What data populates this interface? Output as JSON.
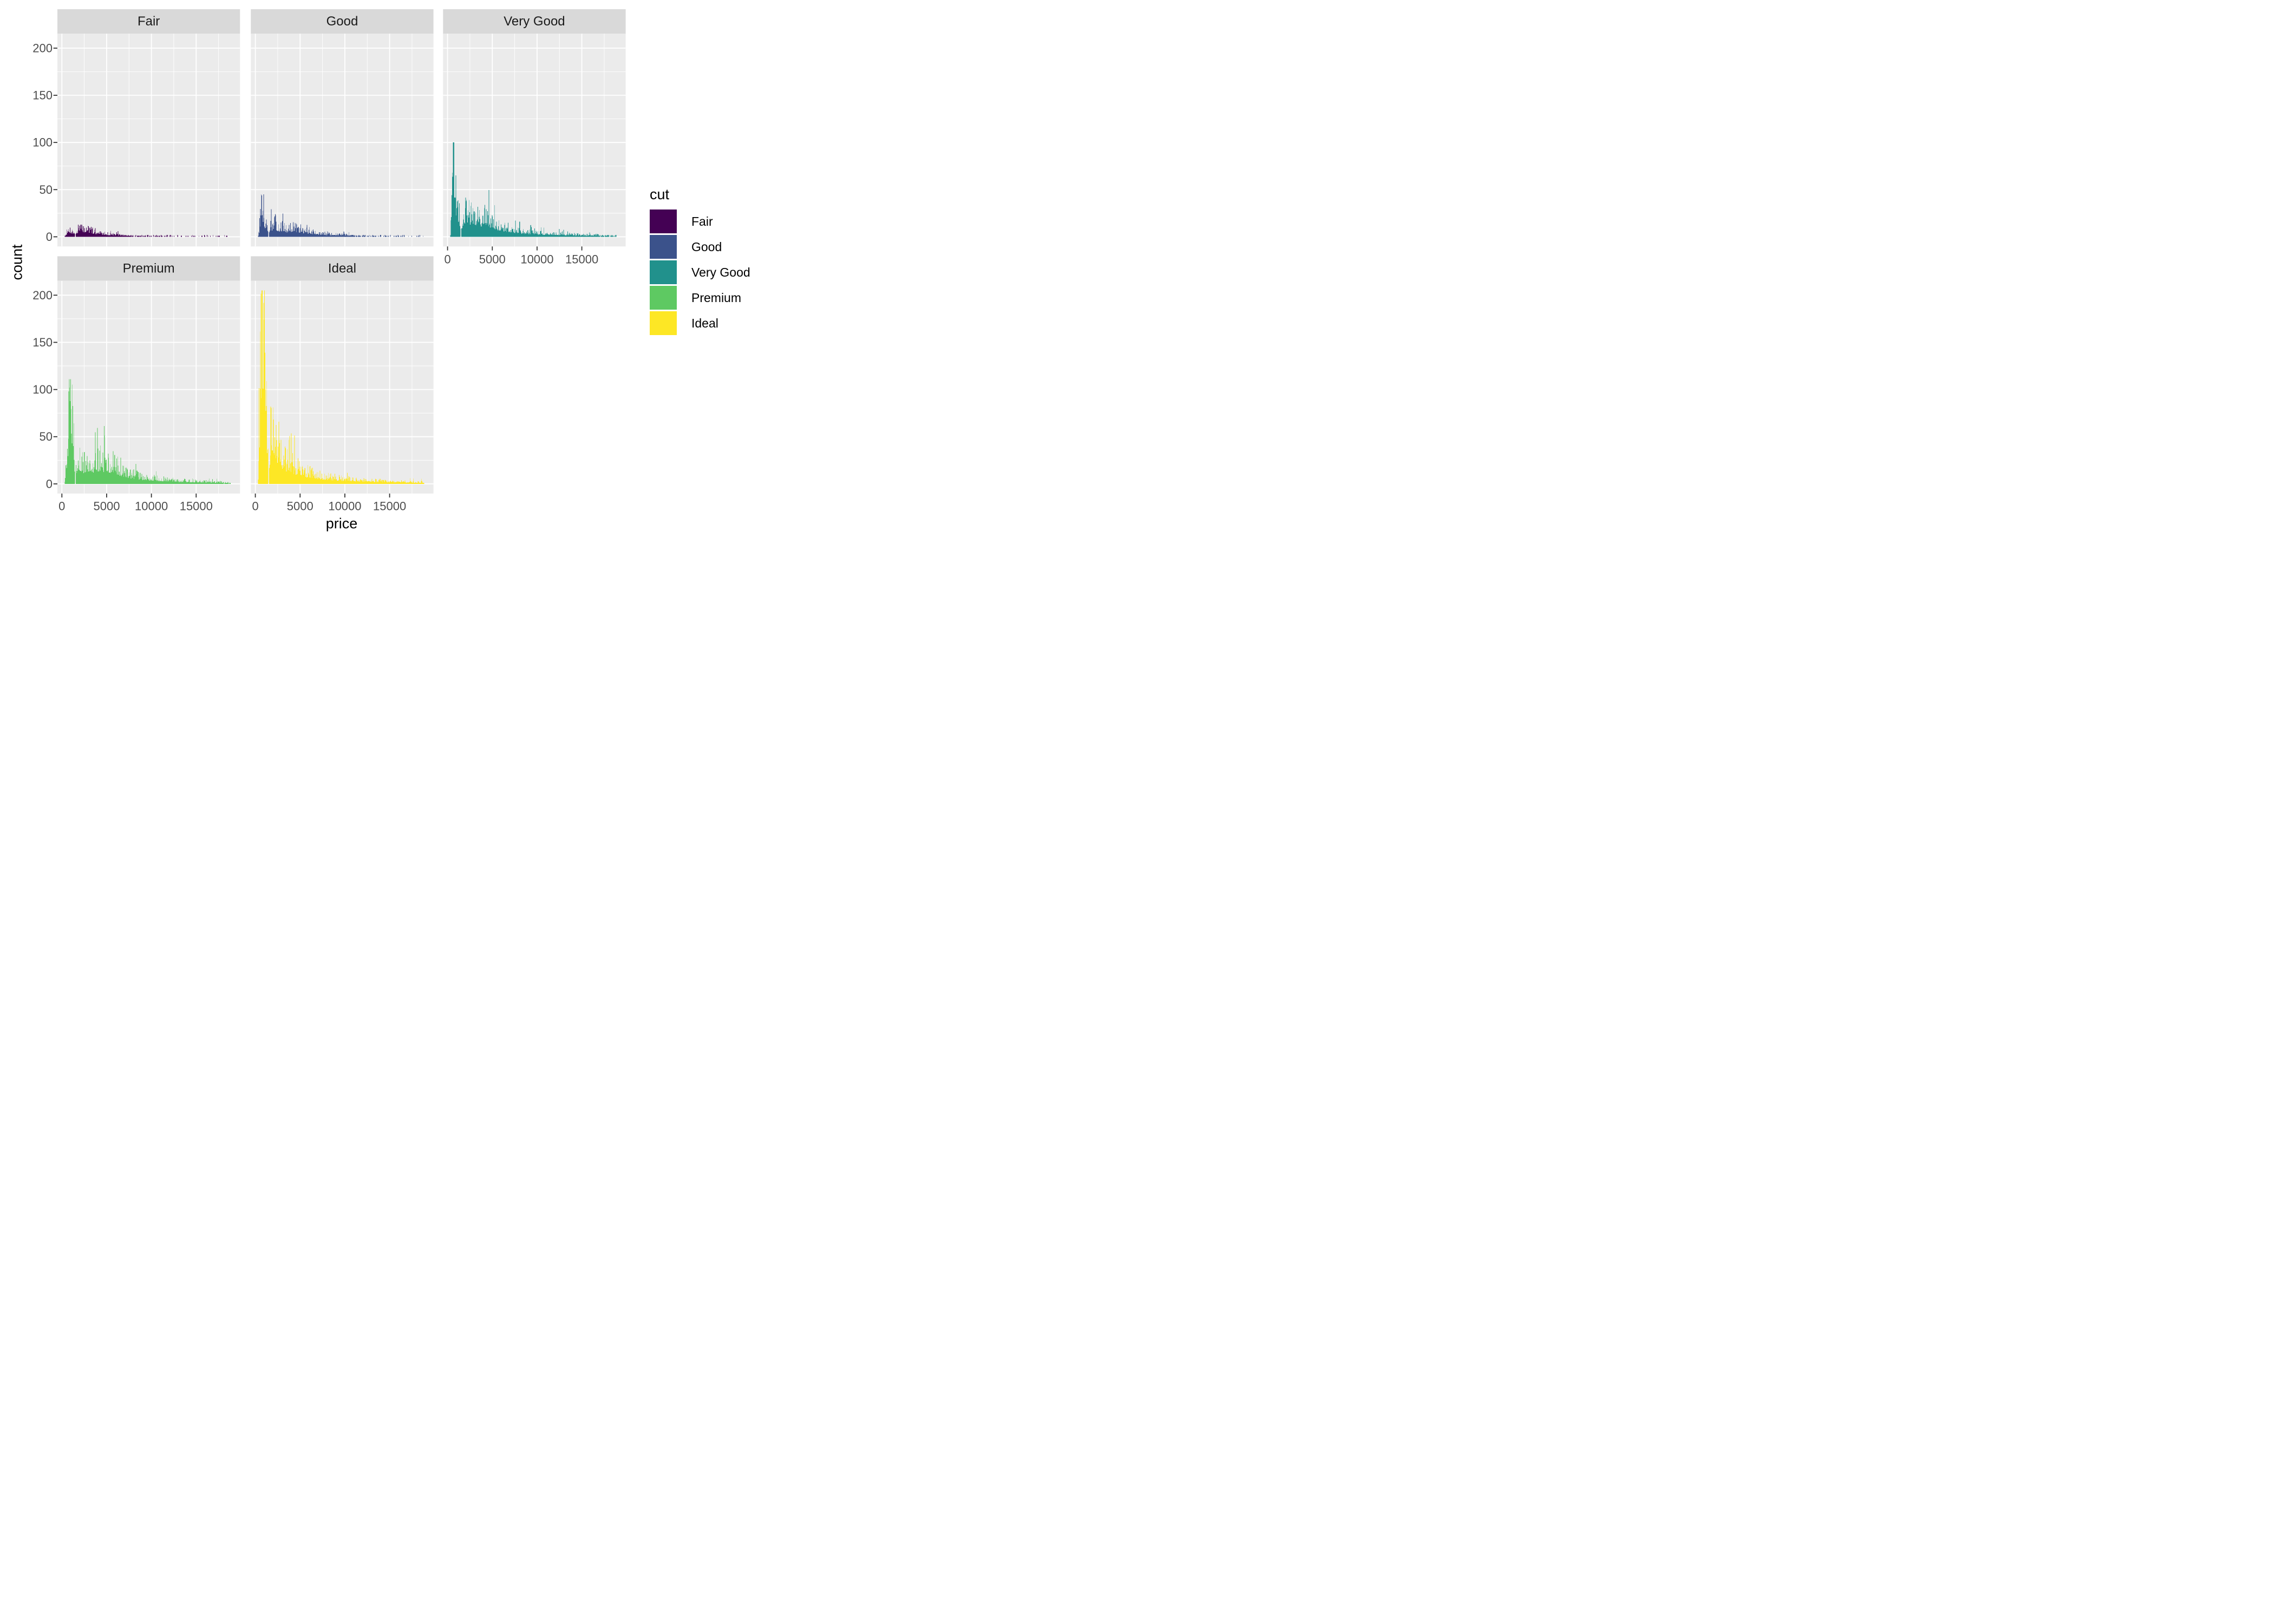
{
  "axis": {
    "x_title": "price",
    "y_title": "count",
    "tick_label_color": "#4d4d4d",
    "tick_mark_color": "#333333"
  },
  "theme": {
    "panel_bg": "#ebebeb",
    "strip_bg": "#d9d9d9",
    "strip_text_color": "#1a1a1a",
    "grid_color": "#ffffff",
    "background": "#ffffff"
  },
  "legend": {
    "title": "cut",
    "entries": [
      {
        "label": "Fair",
        "color": "#440154"
      },
      {
        "label": "Good",
        "color": "#3B528B"
      },
      {
        "label": "Very Good",
        "color": "#21918C"
      },
      {
        "label": "Premium",
        "color": "#5EC962"
      },
      {
        "label": "Ideal",
        "color": "#FDE725"
      }
    ]
  },
  "chart_data": {
    "type": "bar",
    "subtype": "faceted-histogram",
    "x_variable": "price",
    "y_variable": "count",
    "facet_variable": "cut",
    "bin_width": 50,
    "x_start": 300,
    "x_end": 18850,
    "xlim": [
      0,
      18823
    ],
    "ylim": [
      0,
      205
    ],
    "x_ticks": [
      0,
      5000,
      10000,
      15000
    ],
    "x_minor_ticks": [
      2500,
      7500,
      12500,
      17500
    ],
    "y_ticks": [
      0,
      50,
      100,
      150,
      200
    ],
    "y_minor_ticks": [
      25,
      75,
      125,
      175
    ],
    "grid": true,
    "legend_position": "right",
    "facets": [
      {
        "name": "Fair",
        "color": "#440154",
        "row": 0,
        "col": 0,
        "show_y_axis": true,
        "show_x_axis": false,
        "max_count": 13,
        "seed": 7,
        "envelope": [
          [
            326,
            1
          ],
          [
            500,
            4
          ],
          [
            700,
            7
          ],
          [
            900,
            8
          ],
          [
            1100,
            7
          ],
          [
            1300,
            6
          ],
          [
            1440,
            5
          ],
          [
            1460,
            0
          ],
          [
            1540,
            0
          ],
          [
            1560,
            5
          ],
          [
            1700,
            7
          ],
          [
            2000,
            9
          ],
          [
            2200,
            13
          ],
          [
            2500,
            8
          ],
          [
            2900,
            11
          ],
          [
            3200,
            7
          ],
          [
            3600,
            6
          ],
          [
            4000,
            5
          ],
          [
            4500,
            4
          ],
          [
            5000,
            3.5
          ],
          [
            5500,
            3
          ],
          [
            6000,
            2.5
          ],
          [
            7000,
            2
          ],
          [
            8000,
            1.6
          ],
          [
            9000,
            1.3
          ],
          [
            10000,
            1.1
          ],
          [
            12000,
            0.8
          ],
          [
            14000,
            0.6
          ],
          [
            16000,
            0.5
          ],
          [
            18000,
            0.4
          ],
          [
            18823,
            0.4
          ]
        ]
      },
      {
        "name": "Good",
        "color": "#3B528B",
        "row": 0,
        "col": 1,
        "show_y_axis": false,
        "show_x_axis": false,
        "max_count": 45,
        "seed": 13,
        "envelope": [
          [
            326,
            2
          ],
          [
            450,
            10
          ],
          [
            550,
            25
          ],
          [
            650,
            42
          ],
          [
            700,
            45
          ],
          [
            800,
            38
          ],
          [
            900,
            28
          ],
          [
            1000,
            22
          ],
          [
            1100,
            17
          ],
          [
            1250,
            14
          ],
          [
            1400,
            12
          ],
          [
            1440,
            9
          ],
          [
            1460,
            0
          ],
          [
            1540,
            0
          ],
          [
            1560,
            9
          ],
          [
            1650,
            11
          ],
          [
            1800,
            12
          ],
          [
            2000,
            14
          ],
          [
            2200,
            16
          ],
          [
            2400,
            13
          ],
          [
            2600,
            11
          ],
          [
            2800,
            10
          ],
          [
            3000,
            12
          ],
          [
            3300,
            10
          ],
          [
            3600,
            9
          ],
          [
            4000,
            10
          ],
          [
            4300,
            12
          ],
          [
            4600,
            9
          ],
          [
            5000,
            8
          ],
          [
            5500,
            6.5
          ],
          [
            6000,
            7
          ],
          [
            6500,
            5.5
          ],
          [
            7000,
            4.5
          ],
          [
            7500,
            4
          ],
          [
            8000,
            3.2
          ],
          [
            9000,
            2.6
          ],
          [
            10000,
            2.2
          ],
          [
            11000,
            1.9
          ],
          [
            12000,
            1.6
          ],
          [
            13000,
            1.3
          ],
          [
            14000,
            1.1
          ],
          [
            15000,
            0.9
          ],
          [
            16000,
            0.7
          ],
          [
            17000,
            0.6
          ],
          [
            18000,
            0.5
          ],
          [
            18823,
            0.5
          ]
        ]
      },
      {
        "name": "Very Good",
        "color": "#21918C",
        "row": 0,
        "col": 2,
        "show_y_axis": false,
        "show_x_axis": true,
        "max_count": 100,
        "seed": 101,
        "envelope": [
          [
            326,
            3
          ],
          [
            450,
            25
          ],
          [
            550,
            60
          ],
          [
            650,
            100
          ],
          [
            750,
            82
          ],
          [
            850,
            58
          ],
          [
            950,
            46
          ],
          [
            1100,
            36
          ],
          [
            1250,
            28
          ],
          [
            1400,
            22
          ],
          [
            1440,
            14
          ],
          [
            1460,
            0
          ],
          [
            1540,
            0
          ],
          [
            1560,
            14
          ],
          [
            1650,
            20
          ],
          [
            1800,
            25
          ],
          [
            2000,
            28
          ],
          [
            2200,
            30
          ],
          [
            2500,
            26
          ],
          [
            2700,
            24
          ],
          [
            2900,
            28
          ],
          [
            3100,
            24
          ],
          [
            3400,
            22
          ],
          [
            3700,
            20
          ],
          [
            4000,
            22
          ],
          [
            4300,
            25
          ],
          [
            4600,
            20
          ],
          [
            5000,
            18
          ],
          [
            5400,
            15
          ],
          [
            5800,
            13
          ],
          [
            6200,
            12
          ],
          [
            6600,
            10
          ],
          [
            7000,
            9
          ],
          [
            7500,
            8
          ],
          [
            8000,
            7
          ],
          [
            8500,
            6
          ],
          [
            9000,
            5.5
          ],
          [
            9500,
            5
          ],
          [
            10000,
            4.5
          ],
          [
            11000,
            4
          ],
          [
            12000,
            3.5
          ],
          [
            13000,
            3
          ],
          [
            14000,
            2.6
          ],
          [
            15000,
            2.3
          ],
          [
            16000,
            2.1
          ],
          [
            17000,
            2
          ],
          [
            18000,
            1.8
          ],
          [
            18823,
            1.6
          ]
        ]
      },
      {
        "name": "Premium",
        "color": "#5EC962",
        "row": 1,
        "col": 0,
        "show_y_axis": true,
        "show_x_axis": true,
        "max_count": 111,
        "seed": 5,
        "envelope": [
          [
            326,
            4
          ],
          [
            500,
            30
          ],
          [
            700,
            60
          ],
          [
            850,
            90
          ],
          [
            1000,
            110
          ],
          [
            1100,
            85
          ],
          [
            1200,
            65
          ],
          [
            1350,
            45
          ],
          [
            1440,
            22
          ],
          [
            1460,
            0
          ],
          [
            1540,
            0
          ],
          [
            1560,
            16
          ],
          [
            1650,
            25
          ],
          [
            1800,
            30
          ],
          [
            2000,
            28
          ],
          [
            2200,
            25
          ],
          [
            2500,
            22
          ],
          [
            2800,
            24
          ],
          [
            3100,
            26
          ],
          [
            3400,
            24
          ],
          [
            3700,
            22
          ],
          [
            4000,
            25
          ],
          [
            4300,
            28
          ],
          [
            4600,
            25
          ],
          [
            5000,
            24
          ],
          [
            5300,
            20
          ],
          [
            5600,
            25
          ],
          [
            6000,
            22
          ],
          [
            6300,
            18
          ],
          [
            6600,
            16
          ],
          [
            7000,
            14
          ],
          [
            7500,
            12
          ],
          [
            8000,
            10
          ],
          [
            8500,
            9
          ],
          [
            9000,
            8
          ],
          [
            9500,
            7
          ],
          [
            10000,
            6.5
          ],
          [
            10500,
            6
          ],
          [
            11000,
            5.5
          ],
          [
            11500,
            5
          ],
          [
            12000,
            4.5
          ],
          [
            13000,
            4
          ],
          [
            14000,
            3.5
          ],
          [
            15000,
            3
          ],
          [
            16000,
            2.6
          ],
          [
            17000,
            2.3
          ],
          [
            18000,
            2
          ],
          [
            18823,
            1.8
          ]
        ]
      },
      {
        "name": "Ideal",
        "color": "#FDE725",
        "row": 1,
        "col": 1,
        "show_y_axis": false,
        "show_x_axis": true,
        "max_count": 205,
        "seed": 42,
        "envelope": [
          [
            326,
            8
          ],
          [
            450,
            60
          ],
          [
            550,
            120
          ],
          [
            650,
            170
          ],
          [
            750,
            205
          ],
          [
            850,
            185
          ],
          [
            950,
            150
          ],
          [
            1050,
            120
          ],
          [
            1150,
            95
          ],
          [
            1250,
            75
          ],
          [
            1350,
            60
          ],
          [
            1440,
            28
          ],
          [
            1460,
            0
          ],
          [
            1540,
            0
          ],
          [
            1560,
            28
          ],
          [
            1650,
            45
          ],
          [
            1750,
            60
          ],
          [
            1850,
            68
          ],
          [
            1950,
            70
          ],
          [
            2050,
            65
          ],
          [
            2150,
            58
          ],
          [
            2250,
            50
          ],
          [
            2400,
            45
          ],
          [
            2600,
            40
          ],
          [
            2800,
            35
          ],
          [
            3000,
            32
          ],
          [
            3300,
            28
          ],
          [
            3600,
            25
          ],
          [
            4000,
            22
          ],
          [
            4400,
            20
          ],
          [
            4800,
            18
          ],
          [
            5200,
            16
          ],
          [
            5600,
            14
          ],
          [
            6000,
            13
          ],
          [
            6500,
            12
          ],
          [
            7000,
            10
          ],
          [
            7500,
            9
          ],
          [
            8000,
            8
          ],
          [
            8500,
            7
          ],
          [
            9000,
            6.5
          ],
          [
            9500,
            6
          ],
          [
            10000,
            5.5
          ],
          [
            11000,
            5
          ],
          [
            12000,
            4.5
          ],
          [
            13000,
            4
          ],
          [
            14000,
            3.5
          ],
          [
            15000,
            3.2
          ],
          [
            16000,
            2.8
          ],
          [
            17000,
            2.5
          ],
          [
            18000,
            2.2
          ],
          [
            18823,
            2
          ]
        ]
      }
    ]
  }
}
